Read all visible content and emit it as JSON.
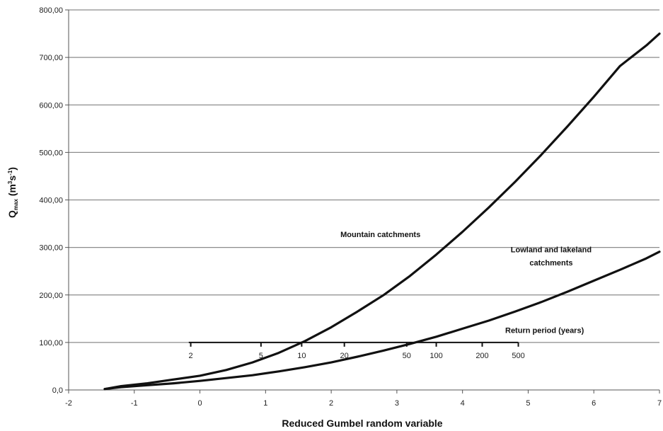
{
  "chart_data": {
    "type": "line",
    "xlabel": "Reduced Gumbel random variable",
    "ylabel": "Q",
    "ylabel_sub": "max",
    "ylabel_unit_a": " (m",
    "ylabel_unit_sup1": "3",
    "ylabel_unit_b": "s",
    "ylabel_unit_sup2": "-1",
    "ylabel_unit_c": ")",
    "xlim": [
      -2,
      7
    ],
    "ylim": [
      0,
      800
    ],
    "x_ticks": [
      "-2",
      "-1",
      "0",
      "1",
      "2",
      "3",
      "4",
      "5",
      "6",
      "7"
    ],
    "y_ticks": [
      "0,0",
      "100,00",
      "200,00",
      "300,00",
      "400,00",
      "500,00",
      "600,00",
      "700,00",
      "800,00"
    ],
    "grid": "horizontal",
    "series": [
      {
        "name": "Mountain catchments",
        "x": [
          -1.45,
          -1.2,
          -0.8,
          -0.4,
          0,
          0.4,
          0.8,
          1.2,
          1.6,
          2.0,
          2.4,
          2.8,
          3.2,
          3.6,
          4.0,
          4.4,
          4.8,
          5.2,
          5.6,
          6.0,
          6.4,
          6.8,
          7.0
        ],
        "y": [
          2,
          8,
          14,
          22,
          30,
          42,
          58,
          78,
          103,
          132,
          165,
          200,
          240,
          285,
          333,
          384,
          438,
          495,
          555,
          617,
          682,
          725,
          750
        ]
      },
      {
        "name": "Lowland and lakeland catchments",
        "x": [
          -1.45,
          -1.2,
          -0.8,
          -0.4,
          0,
          0.4,
          0.8,
          1.2,
          1.6,
          2.0,
          2.4,
          2.8,
          3.2,
          3.6,
          4.0,
          4.4,
          4.8,
          5.2,
          5.6,
          6.0,
          6.4,
          6.8,
          7.0
        ],
        "y": [
          2,
          6,
          10,
          14,
          19,
          25,
          31,
          39,
          48,
          58,
          70,
          83,
          97,
          112,
          129,
          146,
          165,
          185,
          207,
          230,
          253,
          277,
          291
        ]
      }
    ],
    "annotations": [
      {
        "text": "Mountain catchments",
        "x": 2.75,
        "y": 322
      },
      {
        "text": "Lowland and lakeland",
        "x": 5.35,
        "y": 290
      },
      {
        "text": "catchments",
        "x": 5.35,
        "y": 262
      },
      {
        "text": "Return period (years)",
        "x": 5.25,
        "y": 120
      }
    ],
    "return_period": {
      "title": "Return period (years)",
      "y": 100,
      "x_start": -0.17,
      "x_end": 4.85,
      "ticks": [
        {
          "label": "2",
          "x": -0.14
        },
        {
          "label": "5",
          "x": 0.93
        },
        {
          "label": "10",
          "x": 1.55
        },
        {
          "label": "20",
          "x": 2.2
        },
        {
          "label": "50",
          "x": 3.15
        },
        {
          "label": "100",
          "x": 3.6
        },
        {
          "label": "200",
          "x": 4.3
        },
        {
          "label": "500",
          "x": 4.85
        }
      ]
    }
  }
}
